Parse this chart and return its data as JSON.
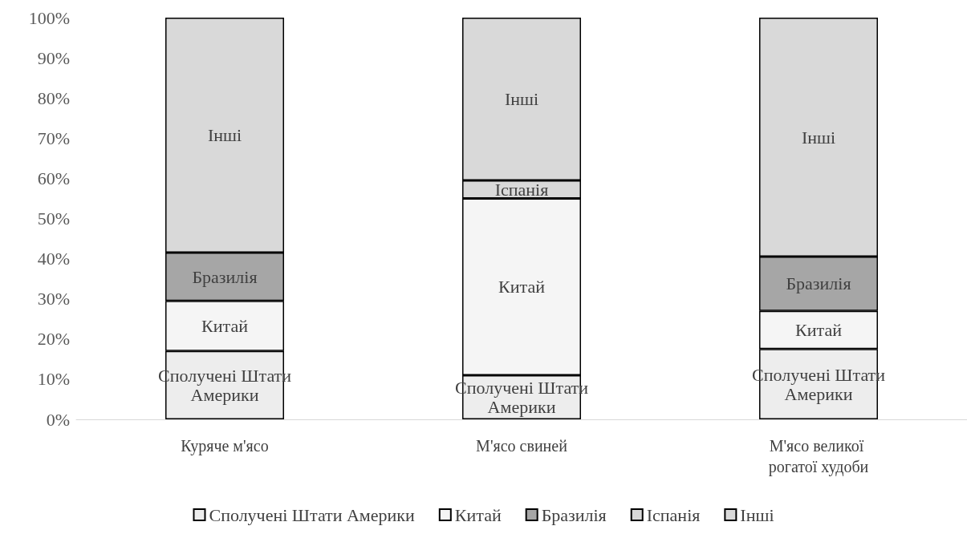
{
  "chart_data": {
    "type": "bar",
    "stacked": true,
    "categories": [
      "Куряче м'ясо",
      "М'ясо свиней",
      "М'ясо великої рогатої худоби"
    ],
    "series": [
      {
        "name": "Сполучені Штати Америки",
        "color": "#ededed",
        "values": [
          17,
          11,
          17.5
        ]
      },
      {
        "name": "Китай",
        "color": "#f5f5f5",
        "values": [
          12.5,
          44,
          9.5
        ]
      },
      {
        "name": "Бразилія",
        "color": "#a6a6a6",
        "values": [
          12,
          0,
          13.5
        ]
      },
      {
        "name": "Іспанія",
        "color": "#d9d9d9",
        "values": [
          0,
          4.5,
          0
        ]
      },
      {
        "name": "Інші",
        "color": "#d9d9d9",
        "values": [
          58.5,
          40.5,
          59.5
        ]
      }
    ],
    "ylim": [
      0,
      100
    ],
    "yticks": [
      {
        "value": 0,
        "label": "0%"
      },
      {
        "value": 10,
        "label": "10%"
      },
      {
        "value": 20,
        "label": "20%"
      },
      {
        "value": 30,
        "label": "30%"
      },
      {
        "value": 40,
        "label": "40%"
      },
      {
        "value": 50,
        "label": "50%"
      },
      {
        "value": 60,
        "label": "60%"
      },
      {
        "value": 70,
        "label": "70%"
      },
      {
        "value": 80,
        "label": "80%"
      },
      {
        "value": 90,
        "label": "90%"
      },
      {
        "value": 100,
        "label": "100%"
      }
    ],
    "grid": false,
    "legend": "bottom"
  }
}
